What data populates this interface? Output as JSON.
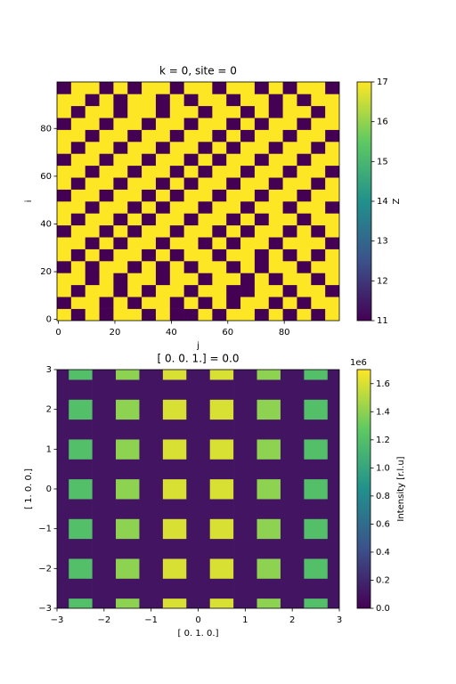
{
  "chart_data": [
    {
      "type": "heatmap",
      "title": "k = 0, site = 0",
      "x_label": "j",
      "y_label": "i",
      "colorbar_label": "Z",
      "xlim": [
        -0.5,
        99.5
      ],
      "ylim": [
        -0.5,
        99.5
      ],
      "xticks": [
        0,
        20,
        40,
        60,
        80
      ],
      "yticks": [
        0,
        20,
        40,
        60,
        80
      ],
      "clim": [
        11,
        17
      ],
      "cticks": [
        11,
        12,
        13,
        14,
        15,
        16,
        17
      ],
      "colormap": "viridis",
      "x": [
        2,
        7,
        12,
        17,
        22,
        27,
        32,
        37,
        42,
        47,
        52,
        57,
        62,
        67,
        72,
        77,
        82,
        87,
        92,
        97
      ],
      "y": [
        2,
        7,
        12,
        17,
        22,
        27,
        32,
        37,
        42,
        47,
        52,
        57,
        62,
        67,
        72,
        77,
        82,
        87,
        92,
        97
      ],
      "z": [
        [
          17,
          11,
          17,
          11,
          17,
          17,
          11,
          17,
          11,
          11,
          17,
          11,
          17,
          17,
          11,
          17,
          11,
          17,
          11,
          17
        ],
        [
          11,
          17,
          17,
          11,
          17,
          11,
          17,
          17,
          11,
          17,
          11,
          17,
          11,
          17,
          17,
          11,
          17,
          11,
          17,
          17
        ],
        [
          17,
          11,
          17,
          17,
          11,
          17,
          11,
          17,
          17,
          11,
          17,
          17,
          11,
          11,
          17,
          17,
          11,
          17,
          17,
          11
        ],
        [
          17,
          17,
          11,
          17,
          11,
          17,
          17,
          11,
          17,
          17,
          11,
          17,
          17,
          11,
          17,
          11,
          17,
          17,
          11,
          17
        ],
        [
          11,
          17,
          11,
          17,
          17,
          11,
          17,
          11,
          17,
          11,
          17,
          17,
          11,
          17,
          11,
          17,
          17,
          11,
          17,
          17
        ],
        [
          17,
          11,
          17,
          11,
          17,
          17,
          11,
          17,
          11,
          17,
          17,
          11,
          17,
          17,
          11,
          17,
          11,
          17,
          11,
          17
        ],
        [
          17,
          17,
          11,
          17,
          11,
          17,
          17,
          11,
          17,
          17,
          11,
          17,
          11,
          17,
          17,
          11,
          17,
          17,
          17,
          11
        ],
        [
          11,
          17,
          17,
          11,
          17,
          11,
          17,
          17,
          11,
          17,
          17,
          11,
          17,
          11,
          17,
          17,
          11,
          17,
          11,
          17
        ],
        [
          17,
          11,
          17,
          17,
          11,
          17,
          11,
          17,
          17,
          11,
          17,
          17,
          11,
          17,
          11,
          17,
          17,
          11,
          17,
          17
        ],
        [
          17,
          17,
          11,
          17,
          17,
          11,
          17,
          11,
          17,
          17,
          11,
          17,
          17,
          11,
          17,
          17,
          11,
          17,
          17,
          11
        ],
        [
          11,
          17,
          17,
          11,
          17,
          17,
          11,
          17,
          11,
          17,
          17,
          11,
          17,
          17,
          11,
          17,
          17,
          11,
          17,
          17
        ],
        [
          17,
          11,
          17,
          17,
          11,
          17,
          17,
          11,
          17,
          11,
          17,
          17,
          11,
          17,
          17,
          11,
          17,
          17,
          11,
          17
        ],
        [
          17,
          17,
          11,
          17,
          17,
          11,
          17,
          17,
          11,
          17,
          11,
          17,
          17,
          11,
          17,
          17,
          11,
          17,
          17,
          11
        ],
        [
          11,
          17,
          17,
          11,
          17,
          17,
          11,
          17,
          17,
          11,
          17,
          11,
          17,
          17,
          11,
          17,
          17,
          11,
          17,
          17
        ],
        [
          17,
          11,
          17,
          17,
          11,
          17,
          17,
          11,
          17,
          17,
          11,
          17,
          11,
          17,
          17,
          11,
          17,
          17,
          11,
          17
        ],
        [
          17,
          17,
          11,
          17,
          17,
          11,
          17,
          17,
          11,
          17,
          17,
          11,
          17,
          11,
          17,
          17,
          11,
          17,
          17,
          11
        ],
        [
          11,
          17,
          17,
          11,
          17,
          17,
          11,
          17,
          17,
          11,
          17,
          17,
          11,
          17,
          11,
          17,
          17,
          11,
          17,
          17
        ],
        [
          17,
          11,
          17,
          17,
          11,
          17,
          17,
          11,
          17,
          17,
          11,
          17,
          17,
          11,
          17,
          11,
          17,
          17,
          11,
          17
        ],
        [
          17,
          17,
          11,
          17,
          11,
          17,
          17,
          11,
          17,
          11,
          17,
          17,
          11,
          17,
          17,
          11,
          17,
          11,
          17,
          17
        ],
        [
          11,
          17,
          17,
          11,
          17,
          11,
          17,
          17,
          11,
          17,
          17,
          11,
          17,
          17,
          11,
          17,
          11,
          17,
          17,
          11
        ]
      ]
    },
    {
      "type": "heatmap",
      "title": "[ 0.  0.  1.] = 0.0",
      "x_label": "[ 0.  1.  0.]",
      "y_label": "[ 1.  0.  0.]",
      "colorbar_label": "Intensity [r.l.u]",
      "colorbar_offset": "1e6",
      "xlim": [
        -3,
        3
      ],
      "ylim": [
        -3,
        3
      ],
      "xticks": [
        {
          "value": -3,
          "label": "−3"
        },
        {
          "value": -2,
          "label": "−2"
        },
        {
          "value": -1,
          "label": "−1"
        },
        0,
        1,
        2,
        3
      ],
      "yticks": [
        {
          "value": -3,
          "label": "−3"
        },
        {
          "value": -2,
          "label": "−2"
        },
        {
          "value": -1,
          "label": "−1"
        },
        0,
        1,
        2,
        3
      ],
      "clim": [
        0,
        1.7
      ],
      "cticks": [
        {
          "value": 0,
          "label": "0.0"
        },
        0.2,
        0.4,
        0.6,
        0.8,
        {
          "value": 1,
          "label": "1.0"
        },
        1.2,
        1.4,
        1.6
      ],
      "colormap": "viridis",
      "x": [
        -3,
        -2.5,
        -2,
        -1.5,
        -1,
        -0.5,
        0,
        0.5,
        1,
        1.5,
        2,
        2.5,
        3
      ],
      "y": [
        -3,
        -2.5,
        -2,
        -1.5,
        -1,
        -0.5,
        0,
        0.5,
        1,
        1.5,
        2,
        2.5,
        3
      ],
      "z": [
        [
          0.1,
          1.2,
          0.1,
          1.4,
          0.1,
          1.6,
          0.1,
          1.6,
          0.1,
          1.4,
          0.1,
          1.2,
          0.1
        ],
        [
          0.1,
          0.1,
          0.1,
          0.1,
          0.1,
          0.1,
          0.1,
          0.1,
          0.1,
          0.1,
          0.1,
          0.1,
          0.1
        ],
        [
          0.1,
          1.2,
          0.1,
          1.4,
          0.1,
          1.6,
          0.1,
          1.6,
          0.1,
          1.4,
          0.1,
          1.2,
          0.1
        ],
        [
          0.1,
          0.1,
          0.1,
          0.1,
          0.1,
          0.1,
          0.1,
          0.1,
          0.1,
          0.1,
          0.1,
          0.1,
          0.1
        ],
        [
          0.1,
          1.2,
          0.1,
          1.4,
          0.1,
          1.6,
          0.1,
          1.6,
          0.1,
          1.4,
          0.1,
          1.2,
          0.1
        ],
        [
          0.1,
          0.1,
          0.1,
          0.1,
          0.1,
          0.1,
          0.1,
          0.1,
          0.1,
          0.1,
          0.1,
          0.1,
          0.1
        ],
        [
          0.1,
          1.2,
          0.1,
          1.4,
          0.1,
          1.6,
          0.1,
          1.6,
          0.1,
          1.4,
          0.1,
          1.2,
          0.1
        ],
        [
          0.1,
          0.1,
          0.1,
          0.1,
          0.1,
          0.1,
          0.1,
          0.1,
          0.1,
          0.1,
          0.1,
          0.1,
          0.1
        ],
        [
          0.1,
          1.2,
          0.1,
          1.4,
          0.1,
          1.6,
          0.1,
          1.6,
          0.1,
          1.4,
          0.1,
          1.2,
          0.1
        ],
        [
          0.1,
          0.1,
          0.1,
          0.1,
          0.1,
          0.1,
          0.1,
          0.1,
          0.1,
          0.1,
          0.1,
          0.1,
          0.1
        ],
        [
          0.1,
          1.2,
          0.1,
          1.4,
          0.1,
          1.6,
          0.1,
          1.6,
          0.1,
          1.4,
          0.1,
          1.2,
          0.1
        ],
        [
          0.1,
          0.1,
          0.1,
          0.1,
          0.1,
          0.1,
          0.1,
          0.1,
          0.1,
          0.1,
          0.1,
          0.1,
          0.1
        ],
        [
          0.1,
          1.2,
          0.1,
          1.4,
          0.1,
          1.6,
          0.1,
          1.6,
          0.1,
          1.4,
          0.1,
          1.2,
          0.1
        ]
      ]
    }
  ]
}
